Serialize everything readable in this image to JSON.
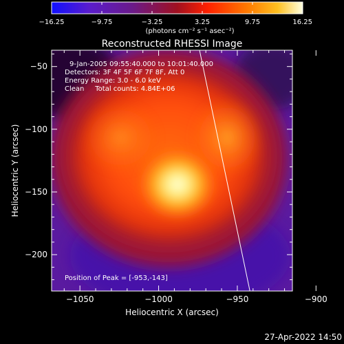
{
  "chart_data": {
    "type": "heatmap",
    "title": "Reconstructed RHESSI Image",
    "xlabel": "Heliocentric X (arcsec)",
    "ylabel": "Heliocentric Y (arcsec)",
    "xlim": [
      -1068,
      -915
    ],
    "ylim": [
      -229,
      -37
    ],
    "xticks": [
      -1050,
      -1000,
      -950,
      -900
    ],
    "yticks": [
      -50,
      -100,
      -150,
      -200
    ],
    "colorbar": {
      "range": [
        -16.25,
        16.25
      ],
      "ticks": [
        "-16.25",
        "-9.75",
        "-3.25",
        "3.25",
        "9.75",
        "16.25"
      ],
      "label": "(photons cm⁻² s⁻¹ asec⁻²)"
    },
    "annotations": [
      "9-Jan-2005 09:55:40.000 to 10:01:40.000",
      "Detectors: 3F 4F 5F 6F 7F 8F, Att 0",
      "Energy Range: 3.0 - 6.0 keV",
      "Clean     Total counts: 4.84E+06"
    ],
    "peak_label": "Position of Peak = [-953,-143]",
    "peak": {
      "x": -953,
      "y": -143,
      "value": 16.25
    },
    "limb_line": [
      [
        -974,
        -37
      ],
      [
        -942,
        -229
      ]
    ],
    "background_value": 0.3
  },
  "footer": {
    "timestamp": "27-Apr-2022 14:50"
  },
  "colors": {
    "background": "#000000",
    "text": "#ffffff"
  }
}
